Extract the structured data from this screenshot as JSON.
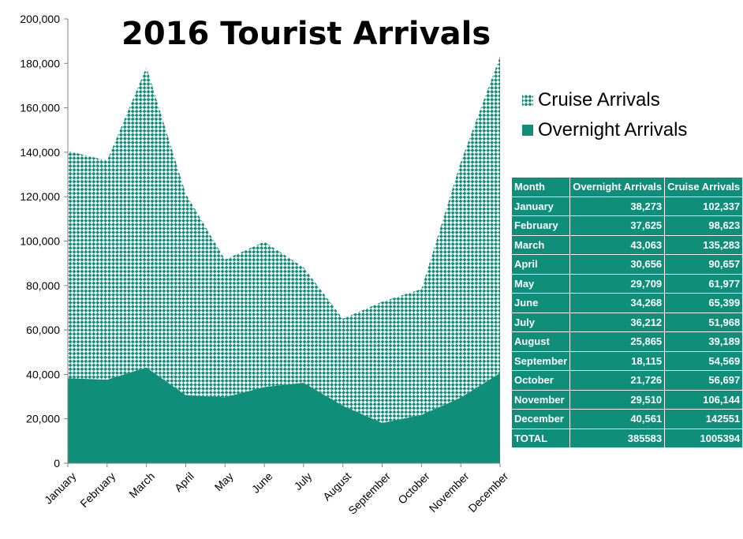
{
  "chart_data": {
    "type": "area",
    "stacked": true,
    "title": "2016 Tourist Arrivals",
    "categories": [
      "January",
      "February",
      "March",
      "April",
      "May",
      "June",
      "July",
      "August",
      "September",
      "October",
      "November",
      "December"
    ],
    "series": [
      {
        "name": "Overnight Arrivals",
        "values": [
          38273,
          37625,
          43063,
          30656,
          29709,
          34268,
          36212,
          25865,
          18115,
          21726,
          29510,
          40561
        ],
        "color": "#0f8f7a",
        "fill": "solid"
      },
      {
        "name": "Cruise Arrivals",
        "values": [
          102337,
          98623,
          135283,
          90657,
          61977,
          65399,
          51968,
          39189,
          54569,
          56697,
          106144,
          142551
        ],
        "color": "#0f8f7a",
        "fill": "checker-pattern"
      }
    ],
    "ylim": [
      0,
      200000
    ],
    "yticks": [
      "0",
      "20,000",
      "40,000",
      "60,000",
      "80,000",
      "100,000",
      "120,000",
      "140,000",
      "160,000",
      "180,000",
      "200,000"
    ],
    "legend_position": "right",
    "grid": false
  },
  "legend": [
    {
      "label": "Cruise Arrivals"
    },
    {
      "label": "Overnight Arrivals"
    }
  ],
  "table": {
    "headers": [
      "Month",
      "Overnight Arrivals",
      "Cruise Arrivals"
    ],
    "rows": [
      [
        "January",
        "38,273",
        "102,337"
      ],
      [
        "February",
        "37,625",
        "98,623"
      ],
      [
        "March",
        "43,063",
        "135,283"
      ],
      [
        "April",
        "30,656",
        "90,657"
      ],
      [
        "May",
        "29,709",
        "61,977"
      ],
      [
        "June",
        "34,268",
        "65,399"
      ],
      [
        "July",
        "36,212",
        "51,968"
      ],
      [
        "August",
        "25,865",
        "39,189"
      ],
      [
        "September",
        "18,115",
        "54,569"
      ],
      [
        "October",
        "21,726",
        "56,697"
      ],
      [
        "November",
        "29,510",
        "106,144"
      ],
      [
        "December",
        "40,561",
        "142551"
      ],
      [
        "TOTAL",
        "385583",
        "1005394"
      ]
    ]
  }
}
